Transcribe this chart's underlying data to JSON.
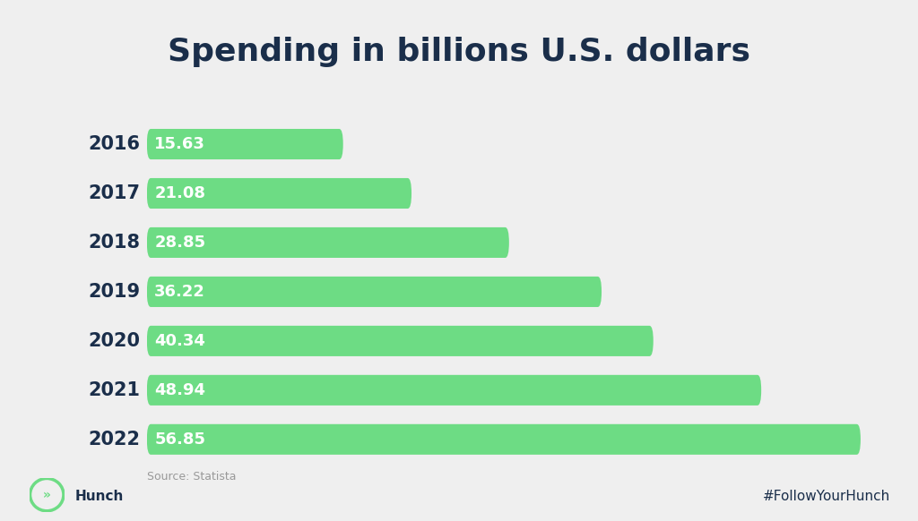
{
  "title": "Spending in billions U.S. dollars",
  "title_fontsize": 26,
  "title_fontweight": "bold",
  "title_color": "#1a2e4a",
  "years": [
    "2016",
    "2017",
    "2018",
    "2019",
    "2020",
    "2021",
    "2022"
  ],
  "values": [
    15.63,
    21.08,
    28.85,
    36.22,
    40.34,
    48.94,
    56.85
  ],
  "max_value": 58.5,
  "bar_color": "#6ddc84",
  "bar_text_color": "#ffffff",
  "bar_text_fontsize": 13,
  "bar_text_fontweight": "bold",
  "year_label_fontsize": 15,
  "year_label_fontweight": "bold",
  "year_label_color": "#1a2e4a",
  "background_color": "#efefef",
  "source_text": "Source: Statista",
  "source_fontsize": 9,
  "source_color": "#999999",
  "footer_left": "Hunch",
  "footer_right": "#FollowYourHunch",
  "footer_fontsize": 11,
  "footer_color": "#1a2e4a",
  "bar_height": 0.62,
  "bar_gap": 1.0
}
